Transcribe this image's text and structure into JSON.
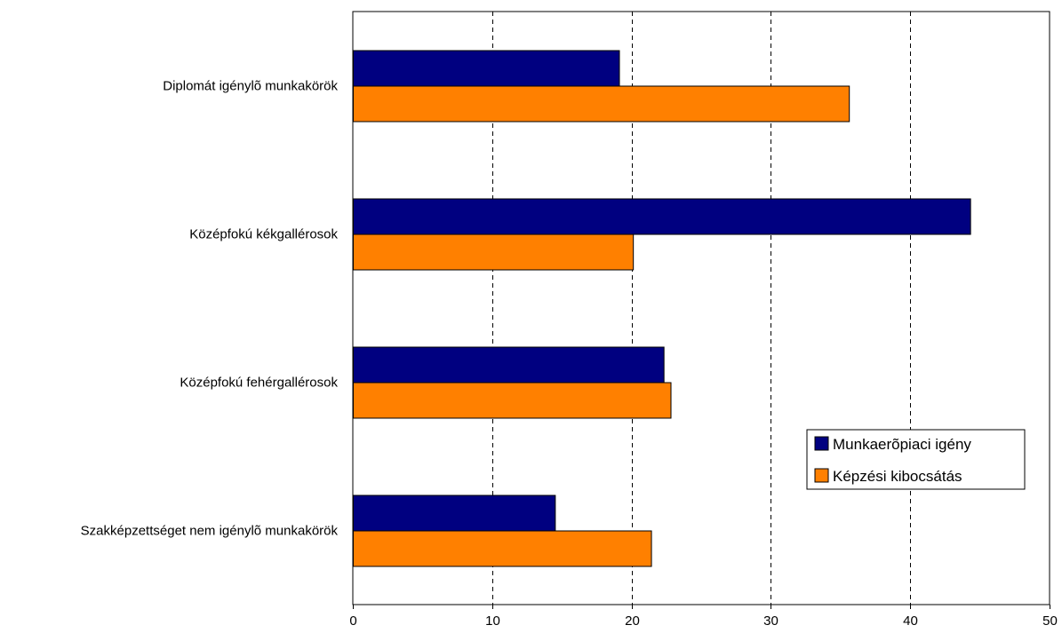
{
  "chart_data": {
    "type": "bar",
    "orientation": "horizontal",
    "categories": [
      "Diplomát igénylõ munkakörök",
      "Középfokú kékgallérosok",
      "Középfokú fehérgallérosok",
      "Szakképzettséget nem igénylõ munkakörök"
    ],
    "series": [
      {
        "name": "Munkaerõpiaci igény",
        "color": "#000080",
        "values": [
          19.1,
          44.3,
          22.3,
          14.5
        ]
      },
      {
        "name": "Képzési kibocsátás",
        "color": "#FF8000",
        "values": [
          35.6,
          20.1,
          22.8,
          21.4
        ]
      }
    ],
    "xlim": [
      0,
      50
    ],
    "xticks": [
      "0",
      "10",
      "20",
      "30",
      "40",
      "50"
    ],
    "grid": "vertical dashed",
    "legend": "right, lower-middle",
    "title": "",
    "xlabel": "",
    "ylabel": ""
  }
}
